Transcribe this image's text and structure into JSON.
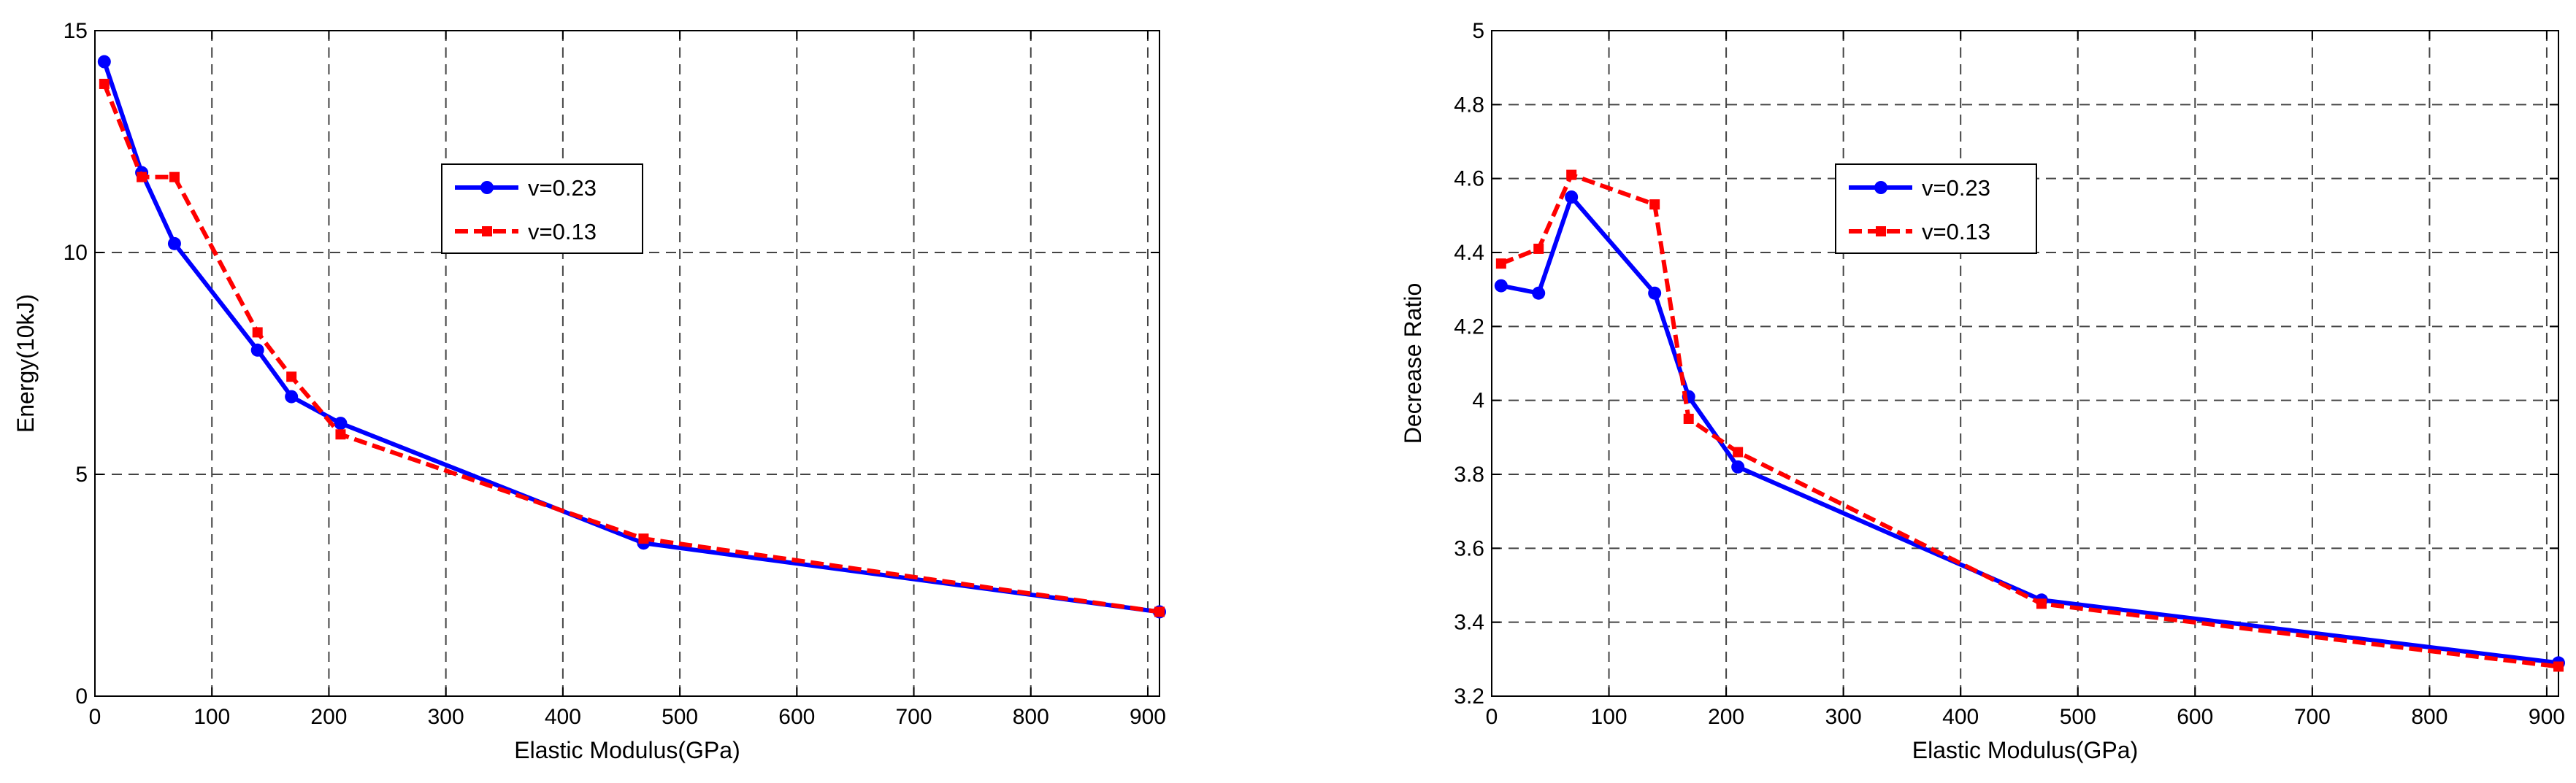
{
  "chart_data": [
    {
      "type": "line",
      "xlabel": "Elastic Modulus(GPa)",
      "ylabel": "Energy(10kJ)",
      "xlim": [
        0,
        910
      ],
      "ylim": [
        0,
        15
      ],
      "xticks": [
        "0",
        "100",
        "200",
        "300",
        "400",
        "500",
        "600",
        "700",
        "800",
        "900"
      ],
      "yticks": [
        "0",
        "5",
        "10",
        "15"
      ],
      "xtick_values": [
        0,
        100,
        200,
        300,
        400,
        500,
        600,
        700,
        800,
        900
      ],
      "ytick_values": [
        0,
        5,
        10,
        15
      ],
      "grid": true,
      "legend_position": "upper-middle",
      "series": [
        {
          "name": "v=0.23",
          "color": "#0000ff",
          "style": "solid",
          "marker": "circle",
          "x": [
            8,
            40,
            68,
            139,
            168,
            210,
            469,
            910
          ],
          "y": [
            14.3,
            11.8,
            10.2,
            7.8,
            6.75,
            6.15,
            3.45,
            1.9
          ]
        },
        {
          "name": "v=0.13",
          "color": "#ff0000",
          "style": "dashed",
          "marker": "square",
          "x": [
            8,
            40,
            68,
            139,
            168,
            210,
            469,
            910
          ],
          "y": [
            13.8,
            11.7,
            11.7,
            8.2,
            7.2,
            5.9,
            3.55,
            1.9
          ]
        }
      ]
    },
    {
      "type": "line",
      "xlabel": "Elastic Modulus(GPa)",
      "ylabel": "Decrease Ratio",
      "xlim": [
        0,
        910
      ],
      "ylim": [
        3.2,
        5
      ],
      "xticks": [
        "0",
        "100",
        "200",
        "300",
        "400",
        "500",
        "600",
        "700",
        "800",
        "900"
      ],
      "yticks": [
        "3.2",
        "3.4",
        "3.6",
        "3.8",
        "4",
        "4.2",
        "4.4",
        "4.6",
        "4.8",
        "5"
      ],
      "xtick_values": [
        0,
        100,
        200,
        300,
        400,
        500,
        600,
        700,
        800,
        900
      ],
      "ytick_values": [
        3.2,
        3.4,
        3.6,
        3.8,
        4.0,
        4.2,
        4.4,
        4.6,
        4.8,
        5.0
      ],
      "grid": true,
      "legend_position": "upper-middle",
      "series": [
        {
          "name": "v=0.23",
          "color": "#0000ff",
          "style": "solid",
          "marker": "circle",
          "x": [
            8,
            40,
            68,
            139,
            168,
            210,
            469,
            910
          ],
          "y": [
            4.31,
            4.29,
            4.55,
            4.29,
            4.01,
            3.82,
            3.46,
            3.29
          ]
        },
        {
          "name": "v=0.13",
          "color": "#ff0000",
          "style": "dashed",
          "marker": "square",
          "x": [
            8,
            40,
            68,
            139,
            168,
            210,
            469,
            910
          ],
          "y": [
            4.37,
            4.41,
            4.61,
            4.53,
            3.95,
            3.86,
            3.45,
            3.28
          ]
        }
      ]
    }
  ]
}
